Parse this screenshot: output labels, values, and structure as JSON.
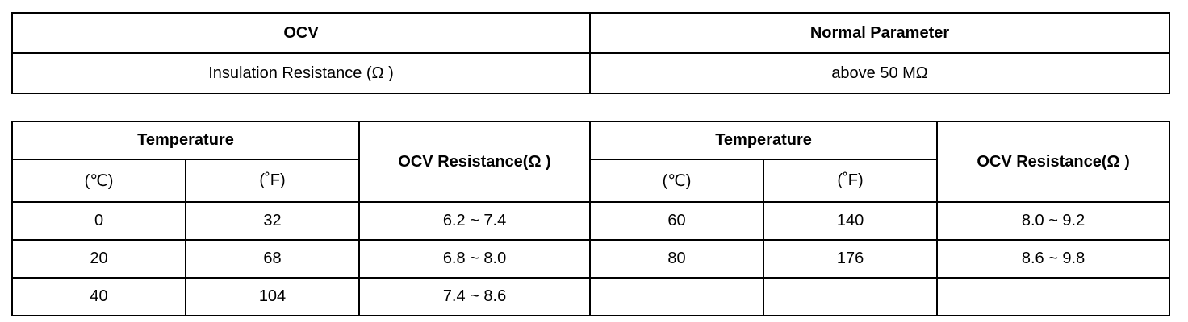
{
  "spec_table": {
    "headers": [
      "OCV",
      "Normal Parameter"
    ],
    "rows": [
      [
        "Insulation Resistance (Ω )",
        "above 50 MΩ"
      ]
    ]
  },
  "ocv_table": {
    "group_headers": [
      "Temperature",
      "OCV Resistance(Ω )",
      "Temperature",
      "OCV Resistance(Ω )"
    ],
    "unit_headers": [
      "(℃)",
      "(˚F)",
      "(℃)",
      "(˚F)"
    ],
    "rows": [
      [
        "0",
        "32",
        "6.2 ~ 7.4",
        "60",
        "140",
        "8.0 ~ 9.2"
      ],
      [
        "20",
        "68",
        "6.8 ~ 8.0",
        "80",
        "176",
        "8.6 ~ 9.8"
      ],
      [
        "40",
        "104",
        "7.4 ~ 8.6"
      ]
    ]
  }
}
